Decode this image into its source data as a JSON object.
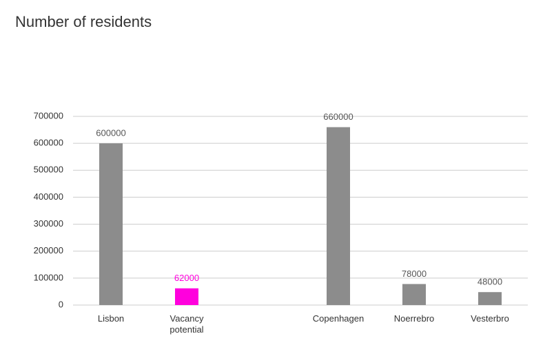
{
  "chart_data": {
    "type": "bar",
    "title": "Number of residents",
    "categories": [
      "Lisbon",
      "Vacancy potential",
      null,
      "Copenhagen",
      "Noerrebro",
      "Vesterbro"
    ],
    "values": [
      600000,
      62000,
      null,
      660000,
      78000,
      48000
    ],
    "colors": [
      "#8c8c8c",
      "#ff00dd",
      null,
      "#8c8c8c",
      "#8c8c8c",
      "#8c8c8c"
    ],
    "ylim": [
      0,
      700000
    ],
    "yticks": [
      0,
      100000,
      200000,
      300000,
      400000,
      500000,
      600000,
      700000
    ],
    "grid": true
  }
}
